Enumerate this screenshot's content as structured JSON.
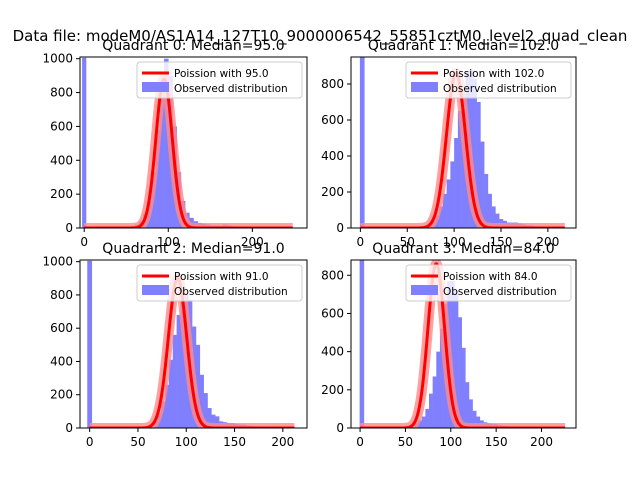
{
  "figure_title": "Data file: modeM0/AS1A14_127T10_9000006542_55851cztM0_level2_quad_clean",
  "colors": {
    "histogram": "#8080ff",
    "poisson": "#ff0000",
    "poisson_glow": "#ff8a8a",
    "spike": "#8080ff"
  },
  "chart_data": [
    {
      "type": "bar",
      "title": "Quadrant 0: Median=95.0",
      "median": 95.0,
      "xlim": [
        -5,
        265
      ],
      "ylim": [
        0,
        1010
      ],
      "xticks": [
        0,
        100,
        200
      ],
      "yticks": [
        0,
        200,
        400,
        600,
        800,
        1000
      ],
      "legend": [
        "Poission with 95.0",
        "Observed distribution"
      ],
      "legend_position": "top-right",
      "zero_spike": {
        "x": 0,
        "value": 1005
      },
      "bin_width": 5,
      "bin_start": 50,
      "hist_values": [
        5,
        10,
        20,
        40,
        80,
        160,
        330,
        580,
        860,
        1000,
        900,
        600,
        330,
        160,
        90,
        60,
        40,
        30,
        25,
        20,
        15,
        15,
        12,
        20,
        15,
        10,
        8,
        5,
        4,
        3
      ],
      "poisson": {
        "mean": 95.0,
        "peak": 880,
        "sigma": 9.7,
        "x_range": [
          0,
          248
        ]
      }
    },
    {
      "type": "bar",
      "title": "Quadrant 1: Median=102.0",
      "median": 102.0,
      "xlim": [
        -10,
        230
      ],
      "ylim": [
        0,
        950
      ],
      "xticks": [
        0,
        50,
        100,
        150,
        200
      ],
      "yticks": [
        0,
        200,
        400,
        600,
        800
      ],
      "legend": [
        "Poission with 102.0",
        "Observed distribution"
      ],
      "legend_position": "top-right",
      "zero_spike": {
        "x": 2,
        "value": 950
      },
      "bin_width": 4,
      "bin_start": 60,
      "hist_values": [
        3,
        5,
        10,
        20,
        40,
        70,
        120,
        190,
        270,
        370,
        500,
        650,
        760,
        870,
        880,
        830,
        700,
        480,
        300,
        190,
        120,
        80,
        50,
        40,
        30,
        30,
        30,
        25,
        20,
        15,
        15,
        10,
        8,
        5,
        4,
        3
      ],
      "poisson": {
        "mean": 102.0,
        "peak": 860,
        "sigma": 10.1,
        "x_range": [
          0,
          218
        ]
      }
    },
    {
      "type": "bar",
      "title": "Quadrant 2: Median=91.0",
      "median": 91.0,
      "xlim": [
        -10,
        225
      ],
      "ylim": [
        0,
        1010
      ],
      "xticks": [
        0,
        50,
        100,
        150,
        200
      ],
      "yticks": [
        0,
        200,
        400,
        600,
        800,
        1000
      ],
      "legend": [
        "Poission with 91.0",
        "Observed distribution"
      ],
      "legend_position": "top-right",
      "zero_spike": {
        "x": 0,
        "value": 1005
      },
      "bin_width": 4,
      "bin_start": 50,
      "hist_values": [
        3,
        5,
        10,
        20,
        40,
        90,
        160,
        260,
        410,
        560,
        680,
        850,
        800,
        770,
        610,
        500,
        320,
        210,
        120,
        80,
        70,
        40,
        35,
        30,
        30,
        25,
        20,
        20,
        15,
        12,
        10,
        8,
        6,
        5,
        4,
        3
      ],
      "poisson": {
        "mean": 91.0,
        "peak": 900,
        "sigma": 9.5,
        "x_range": [
          0,
          212
        ]
      }
    },
    {
      "type": "bar",
      "title": "Quadrant 3: Median=84.0",
      "median": 84.0,
      "xlim": [
        -10,
        238
      ],
      "ylim": [
        0,
        880
      ],
      "xticks": [
        0,
        50,
        100,
        150,
        200
      ],
      "yticks": [
        0,
        200,
        400,
        600,
        800
      ],
      "legend": [
        "Poission with 84.0",
        "Observed distribution"
      ],
      "legend_position": "top-right",
      "zero_spike": {
        "x": 2,
        "value": 880
      },
      "bin_width": 4,
      "bin_start": 44,
      "hist_values": [
        3,
        5,
        8,
        15,
        25,
        40,
        60,
        100,
        180,
        270,
        400,
        520,
        650,
        770,
        770,
        720,
        580,
        420,
        240,
        150,
        90,
        60,
        40,
        30,
        25,
        20,
        20,
        15,
        12,
        10,
        8,
        6,
        5,
        4,
        3
      ],
      "poisson": {
        "mean": 84.0,
        "peak": 860,
        "sigma": 9.2,
        "x_range": [
          0,
          226
        ]
      }
    }
  ]
}
